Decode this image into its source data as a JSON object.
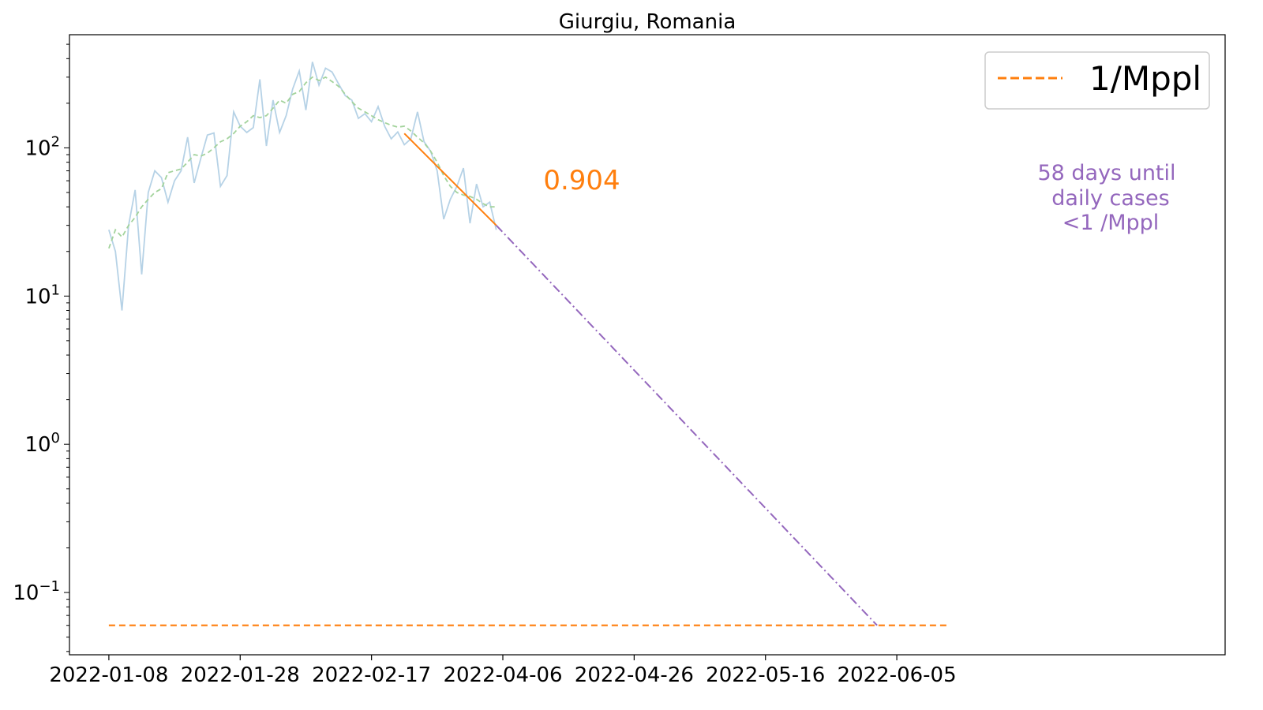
{
  "chart_data": {
    "type": "line",
    "title": "Giurgiu, Romania",
    "xlabel": "",
    "ylabel": "",
    "y_scale": "log",
    "ylim": [
      0.038,
      580
    ],
    "xlim": [
      "2022-01-02",
      "2022-06-27"
    ],
    "grid": false,
    "legend": {
      "placement": "top-right",
      "entries": [
        {
          "label": "1/Mppl",
          "color": "#ff7f0e",
          "style": "dashed"
        }
      ]
    },
    "x_tick_labels": [
      "2022-01-08",
      "2022-01-28",
      "2022-02-17",
      "2022-04-06",
      "2022-04-26",
      "2022-05-16",
      "2022-06-05"
    ],
    "y_ticks": [
      {
        "value": 100,
        "base": "10",
        "exp": "2"
      },
      {
        "value": 10,
        "base": "10",
        "exp": "1"
      },
      {
        "value": 1,
        "base": "10",
        "exp": "0"
      },
      {
        "value": 0.1,
        "base": "10",
        "exp": "−1"
      }
    ],
    "start_date": "2022-01-08",
    "series": [
      {
        "kind": "daily",
        "color": "#aecde3",
        "values": [
          28,
          20,
          8,
          30,
          52,
          14,
          50,
          70,
          63,
          43,
          60,
          70,
          118,
          58,
          85,
          122,
          126,
          55,
          65,
          175,
          140,
          127,
          137,
          290,
          103,
          210,
          127,
          165,
          250,
          330,
          180,
          380,
          265,
          345,
          325,
          270,
          225,
          210,
          158,
          170,
          150,
          190,
          140,
          115,
          128,
          105,
          115,
          175,
          110,
          95,
          70,
          33,
          45,
          55,
          73,
          31,
          57,
          40,
          43,
          28
        ]
      },
      {
        "kind": "rolling-average",
        "color": "#a3d39c",
        "style": "dashed",
        "values": [
          21,
          28,
          25,
          30,
          34,
          40,
          45,
          50,
          53,
          68,
          70,
          72,
          80,
          90,
          88,
          92,
          100,
          110,
          115,
          125,
          140,
          150,
          165,
          160,
          165,
          185,
          210,
          200,
          230,
          240,
          275,
          300,
          285,
          300,
          280,
          260,
          230,
          205,
          185,
          175,
          165,
          155,
          148,
          142,
          138,
          140,
          130,
          118,
          108,
          95,
          80,
          65,
          55,
          50,
          48,
          47,
          45,
          42,
          40,
          40
        ]
      },
      {
        "kind": "fit",
        "color": "#ff7f0e",
        "points": [
          {
            "day": 45,
            "value": 125
          },
          {
            "day": 59,
            "value": 30
          }
        ]
      },
      {
        "kind": "projection",
        "color": "#9467bd",
        "style": "dash-dot",
        "points": [
          {
            "day": 59,
            "value": 30
          },
          {
            "day": 117,
            "value": 0.06
          }
        ]
      },
      {
        "kind": "threshold",
        "color": "#ff7f0e",
        "style": "dashed",
        "points": [
          {
            "day": 0,
            "value": 0.06
          },
          {
            "day": 128,
            "value": 0.06
          }
        ]
      }
    ],
    "annotations": {
      "rate": {
        "text": "0.904",
        "color": "#ff7f0e"
      },
      "note_lines": [
        "58 days until",
        "daily cases",
        "<1 /Mppl"
      ],
      "note_color": "#9467bd"
    }
  }
}
